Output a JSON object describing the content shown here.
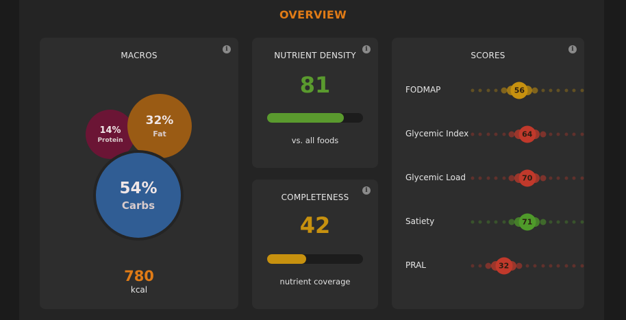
{
  "header": {
    "title": "OVERVIEW"
  },
  "macros": {
    "title": "MACROS",
    "info_icon": "i",
    "protein": {
      "pct": "14%",
      "label": "Protein",
      "color": "#6b1535"
    },
    "fat": {
      "pct": "32%",
      "label": "Fat",
      "color": "#9a5b14"
    },
    "carbs": {
      "pct": "54%",
      "label": "Carbs",
      "color": "#305d94"
    },
    "kcal_value": "780",
    "kcal_unit": "kcal"
  },
  "nutrient_density": {
    "title": "NUTRIENT DENSITY",
    "info_icon": "i",
    "value": "81",
    "fraction": 0.8,
    "color": "#5a9a2e",
    "caption": "vs. all foods"
  },
  "completeness": {
    "title": "COMPLETENESS",
    "info_icon": "i",
    "value": "42",
    "fraction": 0.41,
    "color": "#c7910f",
    "caption": "nutrient coverage"
  },
  "scores": {
    "title": "SCORES",
    "info_icon": "i",
    "items": [
      {
        "label": "FODMAP",
        "value": "56",
        "position": 6,
        "color": "#c7910f"
      },
      {
        "label": "Glycemic Index",
        "value": "64",
        "position": 7,
        "color": "#c0392b"
      },
      {
        "label": "Glycemic Load",
        "value": "70",
        "position": 7,
        "color": "#c0392b"
      },
      {
        "label": "Satiety",
        "value": "71",
        "position": 7,
        "color": "#4f9a2a"
      },
      {
        "label": "PRAL",
        "value": "32",
        "position": 4,
        "color": "#c0392b"
      }
    ]
  }
}
